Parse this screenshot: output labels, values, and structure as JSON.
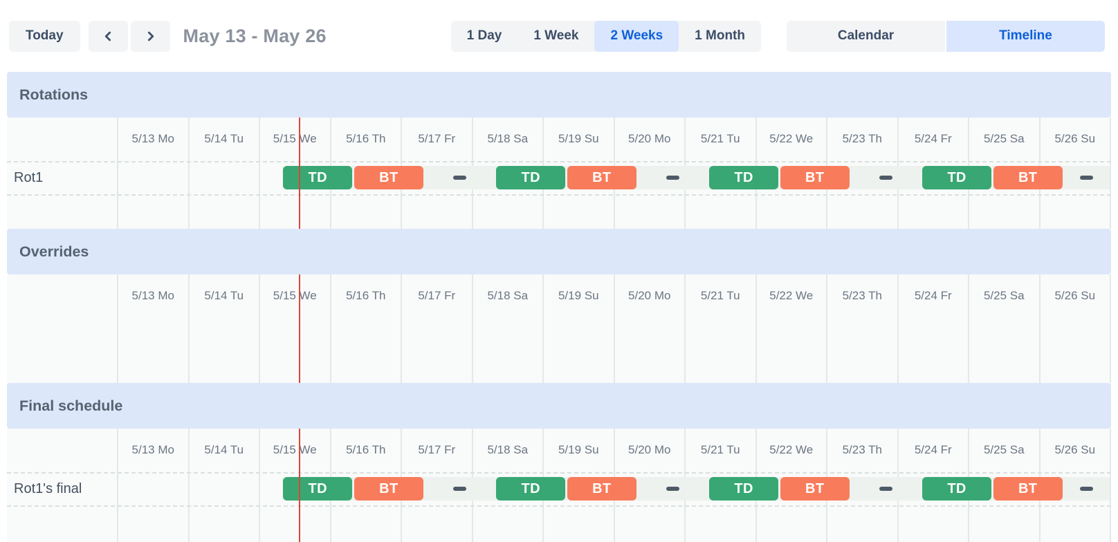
{
  "toolbar": {
    "today_label": "Today",
    "date_range": "May 13 - May 26",
    "view_options": [
      {
        "label": "1 Day",
        "selected": false
      },
      {
        "label": "1 Week",
        "selected": false
      },
      {
        "label": "2 Weeks",
        "selected": true
      },
      {
        "label": "1 Month",
        "selected": false
      }
    ],
    "mode_options": [
      {
        "label": "Calendar",
        "selected": false
      },
      {
        "label": "Timeline",
        "selected": true
      }
    ]
  },
  "timeline": {
    "dates": [
      "5/13 Mo",
      "5/14 Tu",
      "5/15 We",
      "5/16 Th",
      "5/17 Fr",
      "5/18 Sa",
      "5/19 Su",
      "5/20 Mo",
      "5/21 Tu",
      "5/22 We",
      "5/23 Th",
      "5/24 Fr",
      "5/25 Sa",
      "5/26 Su"
    ],
    "sections": [
      {
        "title": "Rotations",
        "rows": [
          {
            "label": "Rot1",
            "has_schedule": true
          }
        ]
      },
      {
        "title": "Overrides",
        "rows": []
      },
      {
        "title": "Final schedule",
        "rows": [
          {
            "label": "Rot1's final",
            "has_schedule": true
          }
        ]
      }
    ],
    "schedule_pattern": {
      "start_day_index": 2,
      "start_day_fraction": 0.328,
      "slot_days": 1,
      "slots": [
        {
          "type": "shift",
          "label": "TD",
          "color_key": "td"
        },
        {
          "type": "shift",
          "label": "BT",
          "color_key": "bt"
        },
        {
          "type": "empty",
          "label": ""
        },
        {
          "type": "shift",
          "label": "TD",
          "color_key": "td"
        },
        {
          "type": "shift",
          "label": "BT",
          "color_key": "bt"
        },
        {
          "type": "empty",
          "label": ""
        },
        {
          "type": "shift",
          "label": "TD",
          "color_key": "td"
        },
        {
          "type": "shift",
          "label": "BT",
          "color_key": "bt"
        },
        {
          "type": "empty",
          "label": ""
        },
        {
          "type": "shift",
          "label": "TD",
          "color_key": "td"
        },
        {
          "type": "shift",
          "label": "BT",
          "color_key": "bt"
        },
        {
          "type": "empty",
          "label": ""
        }
      ]
    },
    "now_marker": {
      "day_index": 2,
      "day_fraction": 0.56
    }
  },
  "colors": {
    "td": "#38A773",
    "bt": "#F87C5B",
    "empty_strip": "#EDF2EF",
    "empty_dash": "#4E5A66",
    "now_line": "#DE4537",
    "section_header_bg": "#DCE7FA",
    "selected_bg": "#D9E6FD",
    "selected_text": "#0D5FD9"
  }
}
